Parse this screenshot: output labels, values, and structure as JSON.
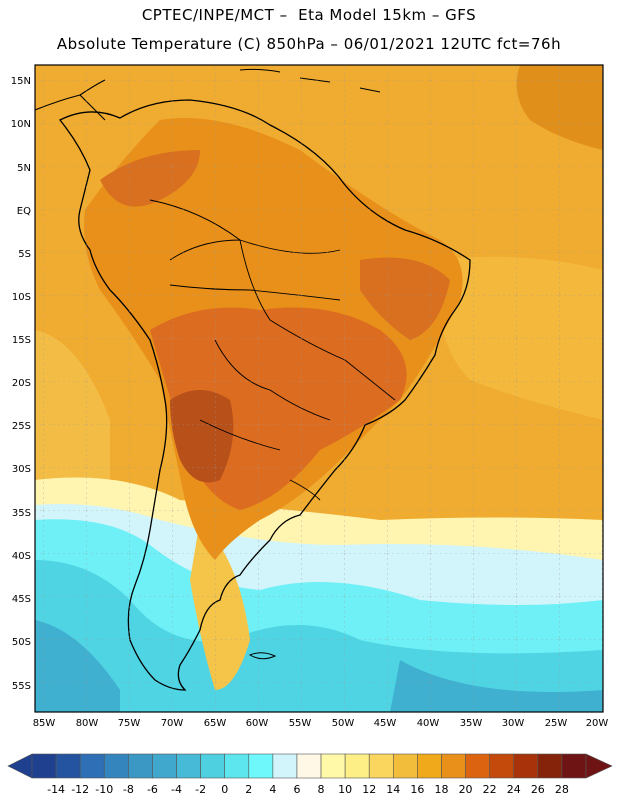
{
  "title": {
    "line1": "CPTEC/INPE/MCT –  Eta Model 15km – GFS",
    "line2": "Absolute Temperature (C) 850hPa – 06/01/2021 12UTC fct=76h"
  },
  "axes": {
    "lat_labels": [
      "15N",
      "10N",
      "5N",
      "EQ",
      "5S",
      "10S",
      "15S",
      "20S",
      "25S",
      "30S",
      "35S",
      "40S",
      "45S",
      "50S",
      "55S"
    ],
    "lon_labels": [
      "85W",
      "80W",
      "75W",
      "70W",
      "65W",
      "60W",
      "55W",
      "50W",
      "45W",
      "40W",
      "35W",
      "30W",
      "25W",
      "20W"
    ]
  },
  "colorbar": {
    "labels": [
      "-14",
      "-12",
      "-10",
      "-8",
      "-6",
      "-4",
      "-2",
      "0",
      "2",
      "4",
      "6",
      "8",
      "10",
      "12",
      "14",
      "16",
      "18",
      "20",
      "22",
      "24",
      "26",
      "28"
    ],
    "colors": [
      "#1f3f8f",
      "#2454a0",
      "#2f6fb5",
      "#3485bd",
      "#3b97c4",
      "#40a8cc",
      "#46bad6",
      "#4fd0e0",
      "#5ee6ee",
      "#6ff8fc",
      "#d2f4fb",
      "#fff8e6",
      "#fff9a8",
      "#fdee85",
      "#fad65e",
      "#f2bd3a",
      "#f0a91a",
      "#e8901a",
      "#dc6410",
      "#c44a0c",
      "#a8330a",
      "#85220a",
      "#6e1414"
    ]
  },
  "field_colors": {
    "warm_ocean": "#f0ac30",
    "hot_land": "#dc6c20",
    "very_hot": "#b8501a",
    "mild": "#f5c54a",
    "cool": "#fff4b0",
    "cold": "#6ff0f6",
    "colder": "#4fd4e4",
    "coldest": "#40b0d0",
    "coast_line": "#000000"
  }
}
